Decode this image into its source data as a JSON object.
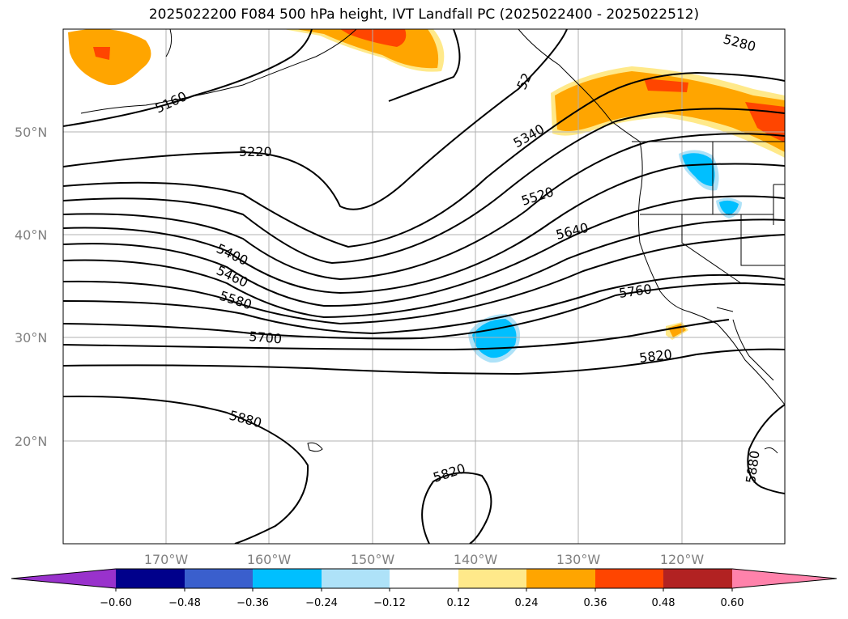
{
  "title": "2025022200 F084 500 hPa height, IVT Landfall PC (2025022400 - 2025022512)",
  "lat_labels": [
    "50°N",
    "40°N",
    "30°N",
    "20°N"
  ],
  "lon_labels": [
    "170°W",
    "160°W",
    "150°W",
    "140°W",
    "130°W",
    "120°W"
  ],
  "contour_labels": [
    "5160",
    "5220",
    "5280",
    "5340",
    "5400",
    "5460",
    "5520",
    "5580",
    "5640",
    "5700",
    "5760",
    "5820",
    "5880",
    "5820",
    "5880",
    "52"
  ],
  "colorbar": {
    "ticks": [
      "−0.60",
      "−0.48",
      "−0.36",
      "−0.24",
      "−0.12",
      "0.12",
      "0.24",
      "0.36",
      "0.48",
      "0.60"
    ],
    "colors": [
      "#9932CC",
      "#00008B",
      "#3A5FCD",
      "#00BFFF",
      "#AEE2F8",
      "#FFFFFF",
      "#FFE98A",
      "#FFA500",
      "#FF4500",
      "#B22222",
      "#FF82AB"
    ]
  }
}
